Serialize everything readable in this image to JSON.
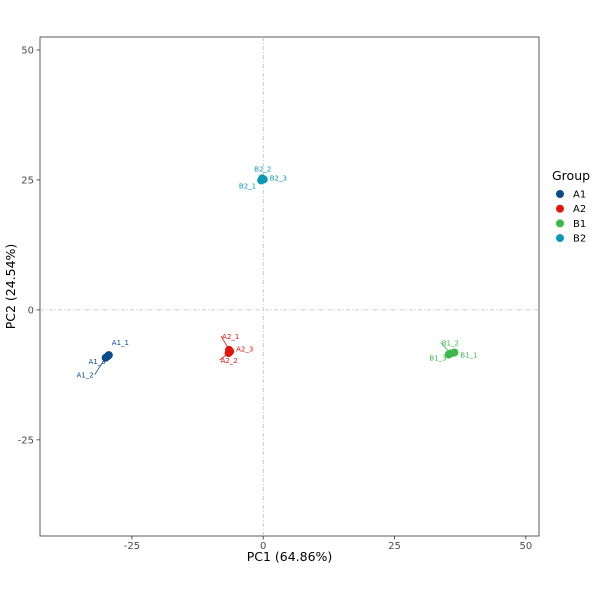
{
  "chart_data": {
    "type": "scatter",
    "xlabel": "PC1 (64.86%)",
    "ylabel": "PC2 (24.54%)",
    "xlim": [
      -42.5,
      52.5
    ],
    "ylim": [
      -43.5,
      52.5
    ],
    "xticks": [
      -25,
      0,
      25,
      50
    ],
    "yticks": [
      -25,
      0,
      25,
      50
    ],
    "xtick_labels": [
      "-25",
      "0",
      "25",
      "50"
    ],
    "ytick_labels": [
      "-25",
      "0",
      "25",
      "50"
    ],
    "reference_lines": {
      "x": 0,
      "y": 0
    },
    "grid": false,
    "legend": {
      "title": "Group",
      "position": "right",
      "entries": [
        {
          "label": "A1",
          "color": "#0c4a8b"
        },
        {
          "label": "A2",
          "color": "#e3140f"
        },
        {
          "label": "B1",
          "color": "#3cb94a"
        },
        {
          "label": "B2",
          "color": "#0b98b5"
        }
      ]
    },
    "series": [
      {
        "name": "A1",
        "color": "#0c4a8b",
        "points": [
          {
            "label": "A1_1",
            "x": -29.4,
            "y": -8.7
          },
          {
            "label": "A1_2",
            "x": -30.0,
            "y": -9.2
          },
          {
            "label": "A1_3",
            "x": -29.6,
            "y": -8.9
          }
        ]
      },
      {
        "name": "A2",
        "color": "#e3140f",
        "points": [
          {
            "label": "A2_1",
            "x": -6.5,
            "y": -7.7
          },
          {
            "label": "A2_2",
            "x": -6.6,
            "y": -8.3
          },
          {
            "label": "A2_3",
            "x": -6.3,
            "y": -8.0
          }
        ]
      },
      {
        "name": "B1",
        "color": "#3cb94a",
        "points": [
          {
            "label": "B1_1",
            "x": 36.4,
            "y": -8.2
          },
          {
            "label": "B1_2",
            "x": 35.7,
            "y": -8.4
          },
          {
            "label": "B1_3",
            "x": 35.3,
            "y": -8.6
          }
        ]
      },
      {
        "name": "B2",
        "color": "#0b98b5",
        "points": [
          {
            "label": "B2_1",
            "x": -0.4,
            "y": 24.9
          },
          {
            "label": "B2_2",
            "x": -0.2,
            "y": 25.3
          },
          {
            "label": "B2_3",
            "x": 0.1,
            "y": 25.1
          }
        ]
      }
    ]
  }
}
